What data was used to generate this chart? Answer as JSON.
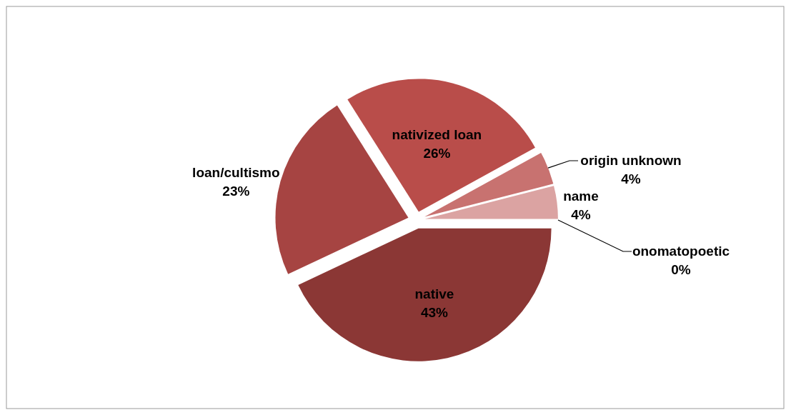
{
  "chart_data": {
    "type": "pie",
    "categories": [
      "native",
      "loan/cultismo",
      "nativized loan",
      "origin unknown",
      "name",
      "onomatopoetic"
    ],
    "values": [
      43,
      23,
      26,
      4,
      4,
      0
    ],
    "value_labels": [
      "43%",
      "23%",
      "26%",
      "4%",
      "4%",
      "0%"
    ],
    "colors": [
      "#8b3735",
      "#a64442",
      "#b94d4a",
      "#c87270",
      "#dba3a2",
      "#efd3d2"
    ]
  }
}
